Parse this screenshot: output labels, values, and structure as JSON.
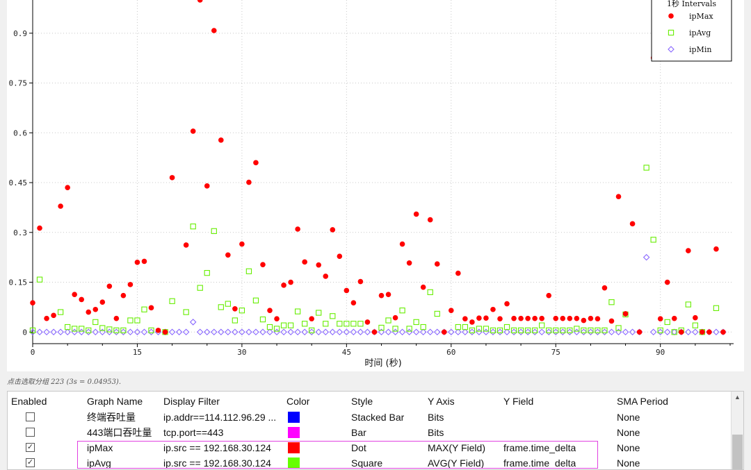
{
  "chart_data": {
    "type": "scatter",
    "xlabel": "时间 (秒)",
    "ylabel": "",
    "xlim": [
      0,
      100.5
    ],
    "ylim": [
      -0.035,
      1.0
    ],
    "x_ticks": [
      0,
      15,
      30,
      45,
      60,
      75,
      90
    ],
    "y_ticks": [
      0,
      0.15,
      0.3,
      0.45,
      0.6,
      0.75,
      0.9
    ],
    "y_tick_labels": [
      "0",
      "0.15",
      "0.3",
      "0.45",
      "0.6",
      "0.75",
      "0.9"
    ],
    "grid": true,
    "legend_title": "1秒 Intervals",
    "legend_position": "top-right",
    "series": [
      {
        "name": "ipMax",
        "marker": "dot",
        "color": "#ff0000",
        "x": [
          0,
          1,
          2,
          3,
          4,
          5,
          6,
          7,
          8,
          9,
          10,
          11,
          12,
          13,
          14,
          15,
          16,
          17,
          18,
          19,
          20,
          22,
          23,
          24,
          25,
          26,
          27,
          28,
          29,
          30,
          31,
          32,
          33,
          34,
          35,
          36,
          37,
          38,
          39,
          40,
          41,
          42,
          43,
          44,
          45,
          46,
          47,
          48,
          49,
          50,
          51,
          52,
          53,
          54,
          55,
          56,
          57,
          58,
          59,
          60,
          61,
          62,
          63,
          64,
          65,
          66,
          67,
          68,
          69,
          70,
          71,
          72,
          73,
          74,
          75,
          76,
          77,
          78,
          79,
          80,
          81,
          82,
          83,
          84,
          85,
          86,
          87,
          89,
          90,
          91,
          92,
          93,
          94,
          95,
          96,
          97,
          98,
          99
        ],
        "y": [
          0.088,
          0.313,
          0.041,
          0.05,
          0.379,
          0.435,
          0.113,
          0.098,
          0.06,
          0.068,
          0.09,
          0.138,
          0.041,
          0.11,
          0.143,
          0.21,
          0.213,
          0.073,
          0.005,
          0.0,
          0.465,
          0.262,
          0.605,
          1.0,
          0.44,
          0.908,
          0.578,
          0.232,
          0.07,
          0.265,
          0.451,
          0.51,
          0.203,
          0.065,
          0.04,
          0.141,
          0.15,
          0.31,
          0.211,
          0.04,
          0.202,
          0.168,
          0.308,
          0.228,
          0.125,
          0.088,
          0.152,
          0.03,
          0.0,
          0.11,
          0.113,
          0.043,
          0.265,
          0.208,
          0.355,
          0.135,
          0.338,
          0.205,
          0.0,
          0.065,
          0.177,
          0.04,
          0.03,
          0.042,
          0.042,
          0.068,
          0.04,
          0.085,
          0.041,
          0.041,
          0.041,
          0.041,
          0.041,
          0.11,
          0.041,
          0.041,
          0.041,
          0.041,
          0.035,
          0.041,
          0.04,
          0.133,
          0.033,
          0.408,
          0.055,
          0.326,
          0.0,
          0.826,
          0.04,
          0.15,
          0.041,
          0.0,
          0.245,
          0.043,
          0.0,
          0.0,
          0.25,
          0.0
        ]
      },
      {
        "name": "ipAvg",
        "marker": "square",
        "color": "#66ee00",
        "x": [
          0,
          1,
          4,
          5,
          6,
          7,
          8,
          9,
          10,
          11,
          12,
          13,
          14,
          15,
          16,
          17,
          19,
          20,
          22,
          23,
          24,
          25,
          26,
          27,
          28,
          29,
          30,
          31,
          32,
          33,
          34,
          35,
          36,
          37,
          38,
          39,
          40,
          41,
          42,
          43,
          44,
          45,
          46,
          47,
          50,
          51,
          52,
          53,
          54,
          55,
          56,
          57,
          58,
          61,
          62,
          63,
          64,
          65,
          66,
          67,
          68,
          69,
          70,
          71,
          72,
          73,
          74,
          75,
          76,
          77,
          78,
          79,
          80,
          81,
          82,
          83,
          84,
          85,
          88,
          89,
          90,
          91,
          92,
          93,
          94,
          95,
          96,
          98
        ],
        "y": [
          0.005,
          0.158,
          0.06,
          0.015,
          0.01,
          0.01,
          0.005,
          0.03,
          0.012,
          0.008,
          0.005,
          0.005,
          0.035,
          0.035,
          0.068,
          0.005,
          0.0,
          0.093,
          0.06,
          0.318,
          0.133,
          0.178,
          0.304,
          0.075,
          0.085,
          0.035,
          0.065,
          0.183,
          0.095,
          0.038,
          0.015,
          0.01,
          0.02,
          0.02,
          0.062,
          0.025,
          0.005,
          0.058,
          0.025,
          0.048,
          0.025,
          0.025,
          0.025,
          0.025,
          0.013,
          0.035,
          0.01,
          0.065,
          0.01,
          0.03,
          0.015,
          0.12,
          0.055,
          0.015,
          0.015,
          0.005,
          0.01,
          0.01,
          0.005,
          0.005,
          0.015,
          0.005,
          0.005,
          0.005,
          0.005,
          0.02,
          0.005,
          0.005,
          0.005,
          0.005,
          0.01,
          0.005,
          0.005,
          0.005,
          0.005,
          0.09,
          0.012,
          0.053,
          0.495,
          0.278,
          0.005,
          0.03,
          0.0,
          0.005,
          0.083,
          0.02,
          0.0,
          0.072
        ]
      },
      {
        "name": "ipMin",
        "marker": "diamond",
        "color": "#8866ff",
        "x": [
          0,
          1,
          2,
          3,
          4,
          5,
          6,
          7,
          8,
          9,
          10,
          11,
          12,
          13,
          14,
          15,
          16,
          17,
          18,
          19,
          20,
          21,
          22,
          23,
          24,
          25,
          26,
          27,
          28,
          29,
          30,
          31,
          32,
          33,
          34,
          35,
          36,
          37,
          38,
          39,
          40,
          41,
          42,
          43,
          44,
          45,
          46,
          47,
          48,
          49,
          50,
          51,
          52,
          53,
          54,
          55,
          56,
          57,
          58,
          59,
          60,
          61,
          62,
          63,
          64,
          65,
          66,
          67,
          68,
          69,
          70,
          71,
          72,
          73,
          74,
          75,
          76,
          77,
          78,
          79,
          80,
          81,
          82,
          83,
          84,
          85,
          86,
          87,
          88,
          89,
          90,
          91,
          92,
          93,
          94,
          95,
          96,
          97,
          98,
          99
        ],
        "y": [
          0,
          0,
          0,
          0,
          0,
          0,
          0,
          0,
          0,
          0,
          0,
          0,
          0,
          0,
          0,
          0,
          0,
          0,
          0,
          0,
          0,
          0,
          0,
          0.03,
          0,
          0,
          0,
          0,
          0,
          0,
          0,
          0,
          0,
          0,
          0,
          0,
          0,
          0,
          0,
          0,
          0,
          0,
          0,
          0,
          0,
          0,
          0,
          0,
          0,
          0,
          0,
          0,
          0,
          0,
          0,
          0,
          0,
          0,
          0,
          0,
          0,
          0,
          0,
          0,
          0,
          0,
          0,
          0,
          0,
          0,
          0,
          0,
          0,
          0,
          0,
          0,
          0,
          0,
          0,
          0,
          0,
          0,
          0,
          0,
          0,
          0,
          0,
          0,
          0.225,
          0,
          0,
          0,
          0,
          0,
          0,
          0,
          0,
          0,
          0,
          0
        ]
      }
    ]
  },
  "status": {
    "text": "点击选取分组 223 (3s = 0.04953)."
  },
  "table": {
    "headers": {
      "enabled": "Enabled",
      "graph_name": "Graph Name",
      "display_filter": "Display Filter",
      "color": "Color",
      "style": "Style",
      "y_axis": "Y Axis",
      "y_field": "Y Field",
      "sma_period": "SMA Period"
    },
    "rows": [
      {
        "checked": "",
        "graph_name": "终端吞吐量",
        "display_filter": "ip.addr==114.112.96.29 ...",
        "color": "#0000ff",
        "style": "Stacked Bar",
        "y_axis": "Bits",
        "y_field": "",
        "sma_period": "None"
      },
      {
        "checked": "",
        "graph_name": "443端口吞吐量",
        "display_filter": "tcp.port==443",
        "color": "#ff00ff",
        "style": "Bar",
        "y_axis": "Bits",
        "y_field": "",
        "sma_period": "None"
      },
      {
        "checked": "✓",
        "graph_name": "ipMax",
        "display_filter": "ip.src == 192.168.30.124",
        "color": "#ff0000",
        "style": "Dot",
        "y_axis": "MAX(Y Field)",
        "y_field": "frame.time_delta",
        "sma_period": "None"
      },
      {
        "checked": "✓",
        "graph_name": "ipAvg",
        "display_filter": "ip.src == 192.168.30.124",
        "color": "#66ff00",
        "style": "Square",
        "y_axis": "AVG(Y Field)",
        "y_field": "frame.time_delta",
        "sma_period": "None"
      }
    ],
    "scroll_up_icon": "▲"
  }
}
